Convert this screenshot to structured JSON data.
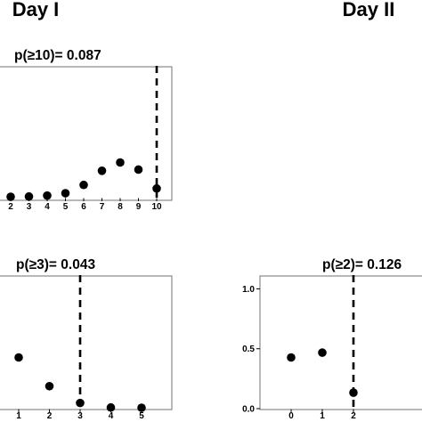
{
  "headings": {
    "day_1": "Day I",
    "day_2": "Day II"
  },
  "chart_data": [
    {
      "type": "scatter",
      "title": "p(≥10)= 0.087",
      "xlabel": "",
      "ylabel": "",
      "x_tick_labels": [
        "2",
        "3",
        "4",
        "5",
        "6",
        "7",
        "8",
        "9",
        "10"
      ],
      "x": [
        2,
        3,
        4,
        5,
        6,
        7,
        8,
        9,
        10
      ],
      "y": [
        0.0,
        0.002,
        0.01,
        0.03,
        0.1,
        0.22,
        0.29,
        0.23,
        0.07
      ],
      "observed_value": 10,
      "ylim": [
        0,
        1.1
      ],
      "grid": false
    },
    {
      "type": "scatter",
      "title": "p(≥3)= 0.043",
      "xlabel": "",
      "ylabel": "",
      "x_tick_labels": [
        "1",
        "2",
        "3",
        "4",
        "5"
      ],
      "x": [
        1,
        2,
        3,
        4,
        5
      ],
      "y": [
        0.42,
        0.18,
        0.04,
        0.002,
        0.0
      ],
      "observed_value": 3,
      "ylim": [
        0,
        1.1
      ],
      "grid": false
    },
    {
      "type": "scatter",
      "title": "p(≥2)= 0.126",
      "xlabel": "",
      "ylabel": "",
      "x_tick_labels": [
        "0",
        "1",
        "2"
      ],
      "y_tick_labels": [
        "0.0",
        "0.5",
        "1.0"
      ],
      "x": [
        0,
        1,
        2
      ],
      "y": [
        0.42,
        0.46,
        0.126
      ],
      "observed_value": 2,
      "ylim": [
        0,
        1.1
      ],
      "grid": false
    }
  ]
}
